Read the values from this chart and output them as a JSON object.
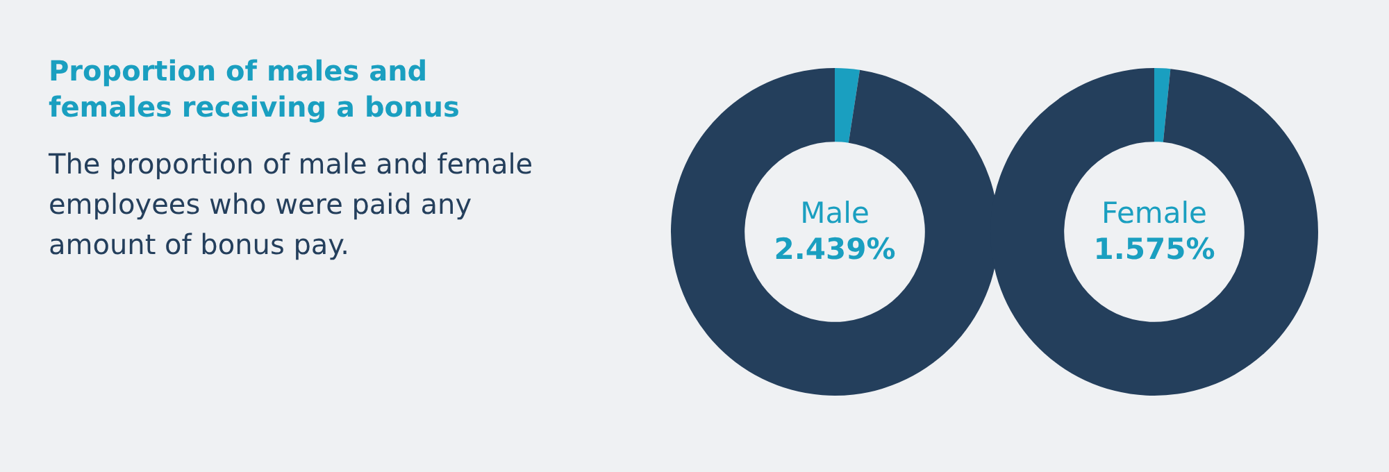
{
  "chart_data": [
    {
      "type": "other",
      "title": "Proportion of males and females receiving a bonus",
      "subtitle": "The proportion of male and female employees who were paid any amount of bonus pay."
    },
    {
      "type": "donut",
      "title": "Male",
      "categories": [
        null,
        null
      ],
      "values": [
        2.439,
        97.561
      ],
      "colors": [
        "#1a9fc0",
        "#243f5c"
      ],
      "annotations": [
        "2.439%"
      ]
    },
    {
      "type": "donut",
      "title": "Female",
      "categories": [
        null,
        null
      ],
      "values": [
        1.575,
        98.425
      ],
      "colors": [
        "#1a9fc0",
        "#243f5c"
      ],
      "annotations": [
        "1.575%"
      ]
    }
  ]
}
